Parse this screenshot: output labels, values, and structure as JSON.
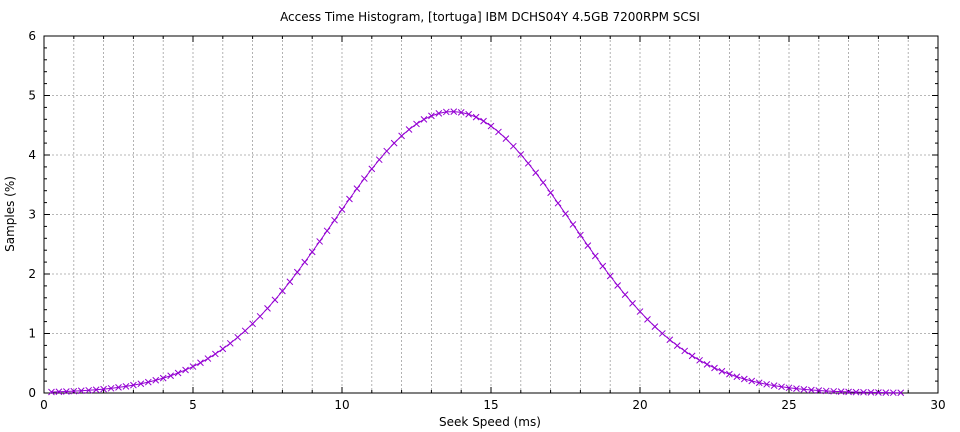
{
  "chart_data": {
    "type": "line",
    "title": "Access Time Histogram, [tortuga] IBM DCHS04Y 4.5GB 7200RPM SCSI",
    "xlabel": "Seek Speed (ms)",
    "ylabel": "Samples (%)",
    "xlim": [
      0,
      30
    ],
    "ylim": [
      0,
      6
    ],
    "xticks": [
      0,
      5,
      10,
      15,
      20,
      25,
      30
    ],
    "yticks": [
      0,
      1,
      2,
      3,
      4,
      5,
      6
    ],
    "grid": true,
    "marker": "cross",
    "series_color": "#9400d3",
    "curve": {
      "peak_x": 13.7,
      "peak_y": 4.73,
      "sigma": 4.0
    },
    "x_start": 0.25,
    "x_end": 28.75,
    "x_step": 0.25
  }
}
